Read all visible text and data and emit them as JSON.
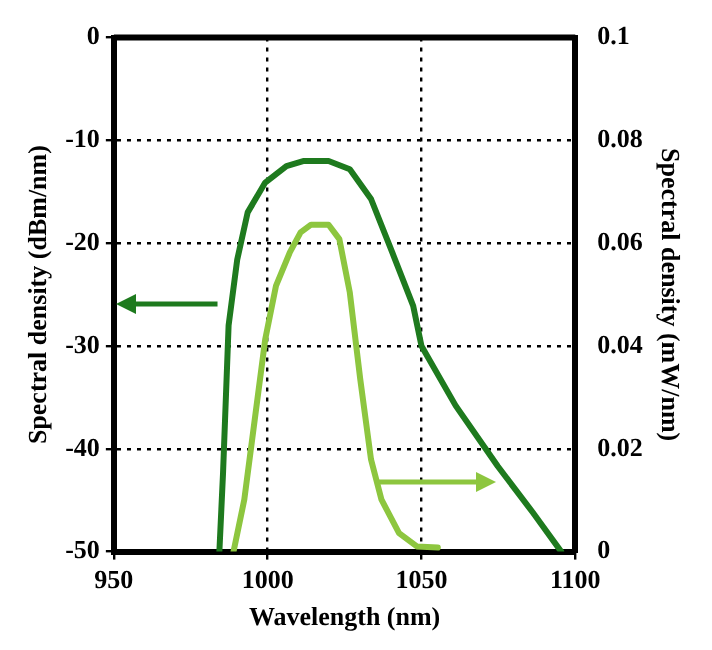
{
  "chart_data": {
    "type": "line",
    "xlabel": "Wavelength (nm)",
    "ylabel": "Spectral density (dBm/nm)",
    "y2label": "Spectral density (mW/nm)",
    "xlim": [
      950,
      1100
    ],
    "xticks": [
      950,
      1000,
      1050,
      1100
    ],
    "ylim": [
      -50,
      0
    ],
    "yticks": [
      -50,
      -40,
      -30,
      -20,
      -10,
      0
    ],
    "y2lim": [
      0,
      0.1
    ],
    "y2ticks": [
      0,
      0.02,
      0.04,
      0.06,
      0.08,
      {
        "value": 0.1,
        "label": "0.1"
      }
    ],
    "grid": true,
    "legend": false,
    "marker": "none",
    "line_style": "solid",
    "series": [
      {
        "color": "#1e7a1e",
        "axis": "y",
        "x": [
          984.3,
          985.5,
          987.3,
          990.1,
          993.5,
          999.2,
          1006.1,
          1011.8,
          1019.8,
          1026.7,
          1033.6,
          1040.5,
          1047.3,
          1050,
          1061.1,
          1074.8,
          1086.2,
          1095.4
        ],
        "values": [
          -50,
          -42.3,
          -28,
          -21.6,
          -17,
          -14.1,
          -12.5,
          -12,
          -12,
          -12.8,
          -15.7,
          -20.9,
          -26.1,
          -30,
          -35.8,
          -41.7,
          -46.2,
          -50
        ]
      },
      {
        "color": "#8dc63f",
        "axis": "y2",
        "x": [
          988.9,
          992.4,
          995.8,
          999.2,
          1002.7,
          1007.2,
          1010.7,
          1014.1,
          1019.8,
          1023.3,
          1026.7,
          1030.1,
          1033.6,
          1037,
          1042.7,
          1048.5,
          1055.3
        ],
        "values": [
          0,
          0.0101,
          0.0257,
          0.0413,
          0.0517,
          0.0582,
          0.0621,
          0.0636,
          0.0636,
          0.0608,
          0.0504,
          0.0335,
          0.0179,
          0.0101,
          0.0036,
          0.001,
          0.0008
        ]
      }
    ]
  }
}
